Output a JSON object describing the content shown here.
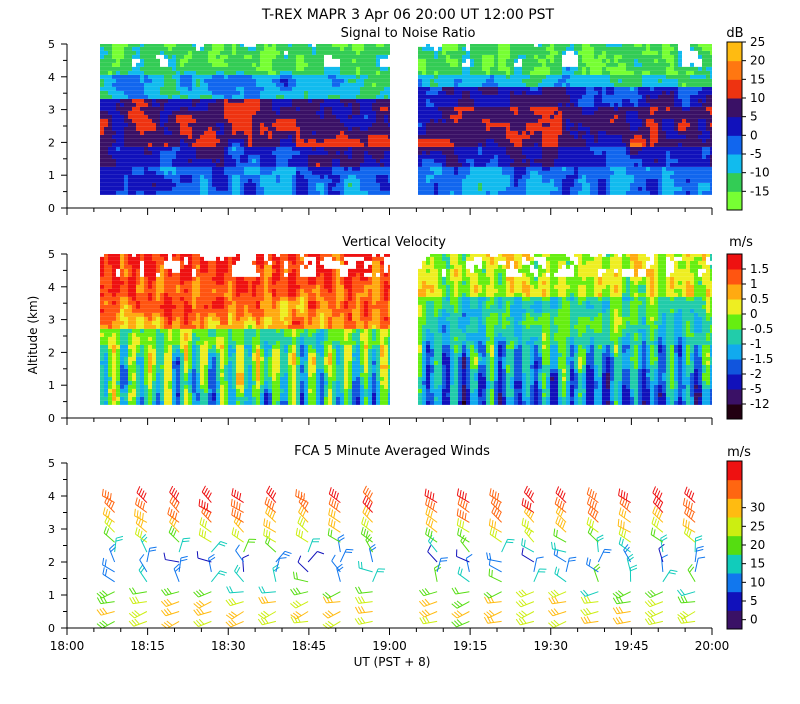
{
  "figure": {
    "title": "T-REX   MAPR   3 Apr 06   20:00 UT   12:00   PST",
    "ylabel": "Altitude (km)",
    "xlabel": "UT  (PST + 8)"
  },
  "chart_data": [
    {
      "type": "heatmap",
      "title": "Signal to Noise Ratio",
      "unit_label": "dB",
      "ylabel": "Altitude (km)",
      "ylim": [
        0,
        5
      ],
      "y_ticks": [
        "0",
        "1",
        "2",
        "3",
        "4",
        "5"
      ],
      "xlim_minutes": [
        0,
        120
      ],
      "data_gap_minutes": [
        60,
        65
      ],
      "colorbar": {
        "levels": [
          "-15",
          "-10",
          "-5",
          "0",
          "5",
          "10",
          "15",
          "20",
          "25"
        ],
        "colors": [
          "#77ff33",
          "#33cc55",
          "#11bbee",
          "#1166ee",
          "#1111bb",
          "#3a1166",
          "#ee3311",
          "#ff7711",
          "#ffbb11"
        ]
      },
      "bands": [
        {
          "alt_from": 0.4,
          "alt_to": 1.2,
          "level": "0"
        },
        {
          "alt_from": 1.2,
          "alt_to": 1.8,
          "level": "5"
        },
        {
          "alt_from": 1.8,
          "alt_to": 3.4,
          "level": "10"
        },
        {
          "alt_from": 3.4,
          "alt_to": 4.2,
          "level": "-5"
        },
        {
          "alt_from": 4.2,
          "alt_to": 5.0,
          "level": "-10"
        }
      ]
    },
    {
      "type": "heatmap",
      "title": "Vertical Velocity",
      "unit_label": "m/s",
      "ylabel": "Altitude (km)",
      "ylim": [
        0,
        5
      ],
      "y_ticks": [
        "0",
        "1",
        "2",
        "3",
        "4",
        "5"
      ],
      "xlim_minutes": [
        0,
        120
      ],
      "data_gap_minutes": [
        60,
        65
      ],
      "colorbar": {
        "levels": [
          "-12",
          "-5",
          "-2",
          "-1.5",
          "-1",
          "-0.5",
          "0",
          "0.5",
          "1",
          "1.5"
        ],
        "colors": [
          "#220011",
          "#3a1166",
          "#1111bb",
          "#1155dd",
          "#11aaee",
          "#22ccaa",
          "#66ee11",
          "#eeee22",
          "#ffaa11",
          "#ff5511",
          "#ee1111"
        ]
      },
      "summary": "Positive (updraft, yellow/red) above ~2.5 km before 19:00; predominantly negative (downdraft, blue/purple) below 2 km and after 19:05"
    },
    {
      "type": "barbs",
      "title": "FCA 5 Minute Averaged Winds",
      "unit_label": "m/s",
      "ylabel": "Altitude (km)",
      "ylim": [
        0,
        5
      ],
      "y_ticks": [
        "0",
        "1",
        "2",
        "3",
        "4",
        "5"
      ],
      "xlim_minutes": [
        0,
        120
      ],
      "x_ticks": [
        "18:00",
        "18:15",
        "18:30",
        "18:45",
        "19:00",
        "19:15",
        "19:30",
        "19:45",
        "20:00"
      ],
      "colorbar": {
        "levels": [
          "0",
          "5",
          "10",
          "15",
          "20",
          "25",
          "30"
        ],
        "colors": [
          "#3a1166",
          "#1111bb",
          "#1177ee",
          "#11ccbb",
          "#55dd11",
          "#ccee11",
          "#ffbb11",
          "#ff6611",
          "#ee1111"
        ]
      },
      "barb_times_minutes": [
        7,
        13,
        19,
        25,
        31,
        37,
        43,
        49,
        55,
        67,
        73,
        79,
        85,
        91,
        97,
        103,
        109,
        115
      ],
      "speed_profile": [
        {
          "alt": 0.2,
          "speed": 20
        },
        {
          "alt": 0.5,
          "speed": 21
        },
        {
          "alt": 0.8,
          "speed": 20
        },
        {
          "alt": 1.1,
          "speed": 16
        },
        {
          "alt": 1.4,
          "speed": 12
        },
        {
          "alt": 1.7,
          "speed": 9
        },
        {
          "alt": 2.0,
          "speed": 6
        },
        {
          "alt": 2.3,
          "speed": 12
        },
        {
          "alt": 2.6,
          "speed": 17
        },
        {
          "alt": 2.9,
          "speed": 22
        },
        {
          "alt": 3.2,
          "speed": 25
        },
        {
          "alt": 3.5,
          "speed": 28
        },
        {
          "alt": 3.8,
          "speed": 30
        }
      ]
    }
  ]
}
